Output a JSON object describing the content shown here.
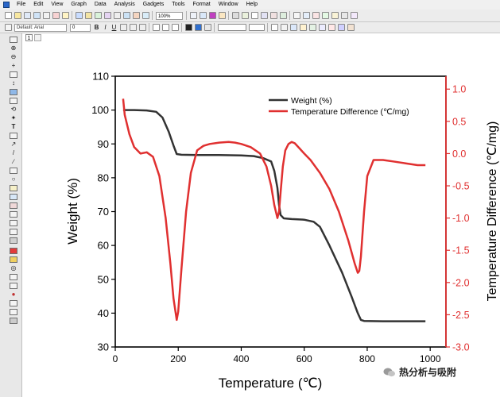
{
  "menu": [
    "File",
    "Edit",
    "View",
    "Graph",
    "Data",
    "Analysis",
    "Gadgets",
    "Tools",
    "Format",
    "Window",
    "Help"
  ],
  "toolbar": {
    "zoom": "100%",
    "font": "Default: Arial",
    "font_size": "0",
    "bold": "B",
    "italic": "I",
    "underline": "U"
  },
  "page_tab": "1",
  "colors": {
    "weight": "#333333",
    "temp_diff": "#e03030",
    "right_axis": "#e03030",
    "left_axis": "#000000"
  },
  "chart_data": {
    "type": "line",
    "xlabel": "Temperature (℃)",
    "ylabel": "Weight (%)",
    "y2label": "Temperature Difference (℃/mg)",
    "xlim": [
      0,
      1050
    ],
    "ylim": [
      30,
      110
    ],
    "y2lim": [
      -3.0,
      1.2
    ],
    "x_ticks": [
      0,
      200,
      400,
      600,
      800,
      1000
    ],
    "y_ticks": [
      30,
      40,
      50,
      60,
      70,
      80,
      90,
      100,
      110
    ],
    "y2_ticks": [
      "-3.0",
      "-2.5",
      "-2.0",
      "-1.5",
      "-1.0",
      "-0.5",
      "0.0",
      "0.5",
      "1.0"
    ],
    "legend": {
      "position": "top-right",
      "entries": [
        "Weight (%)",
        "Temperature Difference (℃/mg)"
      ]
    },
    "series": [
      {
        "name": "Weight (%)",
        "axis": "left",
        "x": [
          25,
          60,
          100,
          130,
          150,
          170,
          185,
          195,
          210,
          260,
          330,
          400,
          440,
          470,
          495,
          505,
          515,
          520,
          525,
          535,
          560,
          600,
          630,
          650,
          680,
          720,
          750,
          770,
          780,
          790,
          850,
          900,
          985
        ],
        "y": [
          100,
          100,
          99.9,
          99.5,
          97.8,
          93.5,
          89.5,
          87,
          86.8,
          86.7,
          86.7,
          86.6,
          86.4,
          85.8,
          84.8,
          82,
          77,
          72,
          69,
          68,
          67.8,
          67.6,
          67,
          65.5,
          60,
          52,
          45,
          40,
          38,
          37.7,
          37.6,
          37.6,
          37.6
        ]
      },
      {
        "name": "Temperature Difference (℃/mg)",
        "axis": "right",
        "x": [
          25,
          30,
          45,
          60,
          80,
          100,
          120,
          140,
          160,
          175,
          185,
          195,
          200,
          210,
          225,
          240,
          260,
          280,
          300,
          330,
          360,
          380,
          400,
          430,
          460,
          480,
          495,
          505,
          515,
          520,
          525,
          532,
          540,
          550,
          560,
          570,
          585,
          600,
          620,
          650,
          680,
          710,
          740,
          760,
          770,
          775,
          780,
          790,
          800,
          820,
          850,
          880,
          920,
          960,
          985
        ],
        "y": [
          0.85,
          0.6,
          0.3,
          0.1,
          0.0,
          0.02,
          -0.05,
          -0.35,
          -1.0,
          -1.7,
          -2.25,
          -2.58,
          -2.45,
          -1.8,
          -0.9,
          -0.3,
          0.05,
          0.12,
          0.15,
          0.17,
          0.18,
          0.17,
          0.15,
          0.1,
          0.0,
          -0.2,
          -0.5,
          -0.8,
          -1.0,
          -0.9,
          -0.6,
          -0.2,
          0.05,
          0.15,
          0.18,
          0.16,
          0.08,
          0.0,
          -0.1,
          -0.3,
          -0.55,
          -0.9,
          -1.35,
          -1.7,
          -1.85,
          -1.82,
          -1.6,
          -0.9,
          -0.35,
          -0.1,
          -0.1,
          -0.12,
          -0.15,
          -0.18,
          -0.18
        ]
      }
    ]
  },
  "watermark": "热分析与吸附"
}
